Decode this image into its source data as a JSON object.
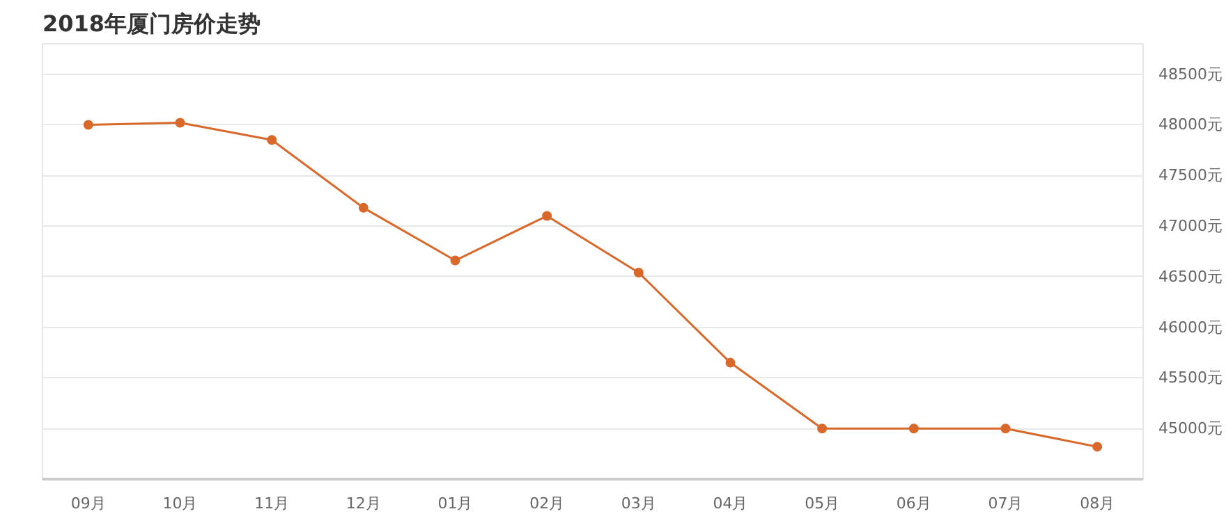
{
  "chart_data": {
    "type": "line",
    "title": "2018年厦门房价走势",
    "categories": [
      "09月",
      "10月",
      "11月",
      "12月",
      "01月",
      "02月",
      "03月",
      "04月",
      "05月",
      "06月",
      "07月",
      "08月"
    ],
    "series": [
      {
        "color": "#d9692a",
        "values": [
          48000,
          48020,
          47850,
          47180,
          46660,
          47100,
          46540,
          45650,
          45000,
          45000,
          45000,
          44820
        ]
      }
    ],
    "ylim": [
      44500,
      48800
    ],
    "yticks": [
      {
        "value": 45000,
        "label": "45000元"
      },
      {
        "value": 45500,
        "label": "45500元"
      },
      {
        "value": 46000,
        "label": "46000元"
      },
      {
        "value": 46500,
        "label": "46500元"
      },
      {
        "value": 47000,
        "label": "47000元"
      },
      {
        "value": 47500,
        "label": "47500元"
      },
      {
        "value": 48000,
        "label": "48000元"
      },
      {
        "value": 48500,
        "label": "48500元"
      }
    ],
    "grid": "y",
    "marker": "circle",
    "line_style": "solid"
  }
}
